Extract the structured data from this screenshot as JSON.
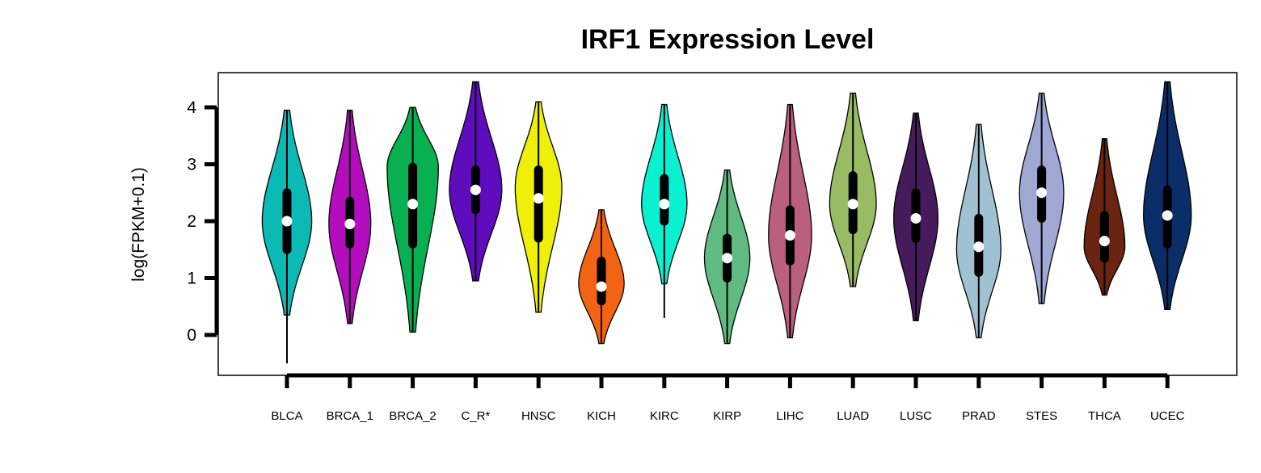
{
  "chart_data": {
    "type": "violin",
    "title": "IRF1 Expression Level",
    "xlabel": "",
    "ylabel": "log(FPKM+0.1)",
    "yticks": [
      0,
      1,
      2,
      3,
      4
    ],
    "ylim": [
      -0.7,
      4.65
    ],
    "grid": false,
    "legend": "none",
    "categories": [
      "BLCA",
      "BRCA_1",
      "BRCA_2",
      "C_R*",
      "HNSC",
      "KICH",
      "KIRC",
      "KIRP",
      "LIHC",
      "LUAD",
      "LUSC",
      "PRAD",
      "STES",
      "THCA",
      "UCEC"
    ],
    "series": [
      {
        "color": "#0BBAB4",
        "min": -0.5,
        "violin_min": 0.35,
        "q1": 1.5,
        "median": 2.0,
        "q3": 2.5,
        "max": 3.95,
        "mode": 2.0,
        "width": 0.85
      },
      {
        "color": "#B40DBE",
        "min": 0.2,
        "violin_min": 0.2,
        "q1": 1.6,
        "median": 1.95,
        "q3": 2.35,
        "max": 3.95,
        "mode": 1.95,
        "width": 0.72
      },
      {
        "color": "#08B052",
        "min": 0.05,
        "violin_min": 0.05,
        "q1": 1.6,
        "median": 2.3,
        "q3": 2.95,
        "max": 4.0,
        "mode": 2.95,
        "width": 0.88
      },
      {
        "color": "#5F0DBC",
        "min": 0.95,
        "violin_min": 0.95,
        "q1": 2.2,
        "median": 2.55,
        "q3": 2.9,
        "max": 4.45,
        "mode": 2.55,
        "width": 0.9
      },
      {
        "color": "#EEF00A",
        "min": 0.4,
        "violin_min": 0.4,
        "q1": 1.7,
        "median": 2.4,
        "q3": 2.9,
        "max": 4.1,
        "mode": 2.6,
        "width": 0.8
      },
      {
        "color": "#F26313",
        "min": -0.15,
        "violin_min": -0.15,
        "q1": 0.6,
        "median": 0.85,
        "q3": 1.3,
        "max": 2.2,
        "mode": 0.9,
        "width": 0.78
      },
      {
        "color": "#0CF0D2",
        "min": 0.3,
        "violin_min": 0.9,
        "q1": 2.0,
        "median": 2.3,
        "q3": 2.75,
        "max": 4.05,
        "mode": 2.3,
        "width": 0.78
      },
      {
        "color": "#60BB82",
        "min": -0.15,
        "violin_min": -0.15,
        "q1": 1.0,
        "median": 1.35,
        "q3": 1.7,
        "max": 2.9,
        "mode": 1.35,
        "width": 0.78
      },
      {
        "color": "#BA607E",
        "min": -0.05,
        "violin_min": -0.05,
        "q1": 1.3,
        "median": 1.75,
        "q3": 2.2,
        "max": 4.05,
        "mode": 1.75,
        "width": 0.74
      },
      {
        "color": "#97BC63",
        "min": 0.85,
        "violin_min": 0.85,
        "q1": 1.85,
        "median": 2.3,
        "q3": 2.8,
        "max": 4.25,
        "mode": 2.3,
        "width": 0.8
      },
      {
        "color": "#451B5C",
        "min": 0.25,
        "violin_min": 0.25,
        "q1": 1.7,
        "median": 2.05,
        "q3": 2.5,
        "max": 3.9,
        "mode": 2.05,
        "width": 0.76
      },
      {
        "color": "#9EC2D2",
        "min": -0.05,
        "violin_min": -0.05,
        "q1": 1.1,
        "median": 1.55,
        "q3": 2.05,
        "max": 3.7,
        "mode": 1.5,
        "width": 0.76
      },
      {
        "color": "#9FA8D2",
        "min": 0.55,
        "violin_min": 0.55,
        "q1": 2.05,
        "median": 2.5,
        "q3": 2.9,
        "max": 4.25,
        "mode": 2.5,
        "width": 0.76
      },
      {
        "color": "#6A2410",
        "min": 0.7,
        "violin_min": 0.7,
        "q1": 1.35,
        "median": 1.65,
        "q3": 2.1,
        "max": 3.45,
        "mode": 1.55,
        "width": 0.7
      },
      {
        "color": "#0B2D68",
        "min": 0.45,
        "violin_min": 0.45,
        "q1": 1.6,
        "median": 2.1,
        "q3": 2.55,
        "max": 4.45,
        "mode": 2.1,
        "width": 0.82
      }
    ]
  }
}
